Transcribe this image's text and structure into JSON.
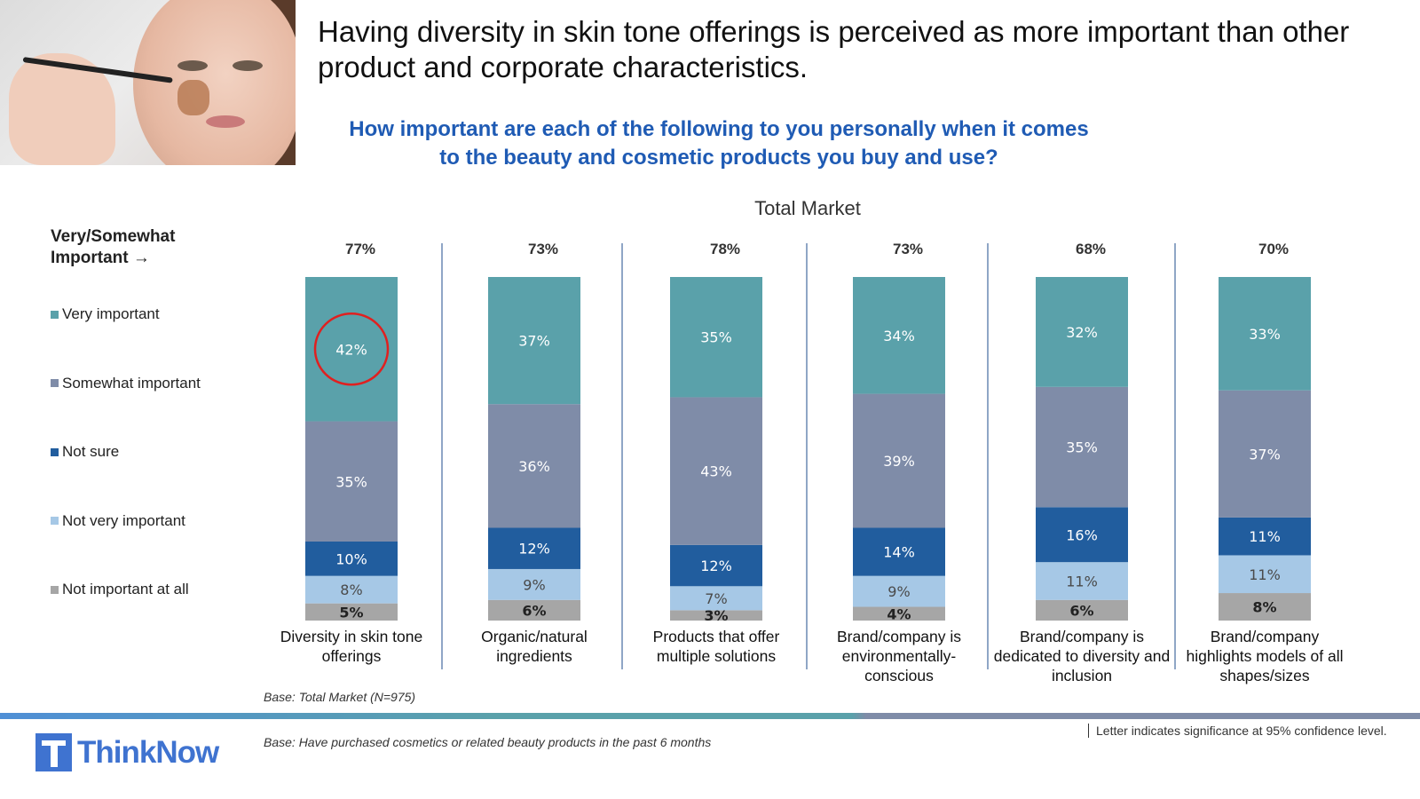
{
  "headline": "Having diversity in skin tone offerings is perceived as more important than other product and corporate characteristics.",
  "question": "How important are each of the following to you personally when it comes to the beauty and cosmetic products you buy and use?",
  "legend_title": "Very/Somewhat Important →",
  "chart_data": {
    "type": "bar",
    "stacked": true,
    "title": "Total Market",
    "unit": "%",
    "categories": [
      "Diversity in skin tone offerings",
      "Organic/natural ingredients",
      "Products that offer multiple solutions",
      "Brand/company is environmentally-conscious",
      "Brand/company is dedicated to diversity and inclusion",
      "Brand/company highlights models of all shapes/sizes"
    ],
    "totals_very_somewhat": [
      "77%",
      "73%",
      "78%",
      "73%",
      "68%",
      "70%"
    ],
    "series": [
      {
        "name": "Not important at all",
        "color": "#a6a6a6",
        "values": [
          5,
          6,
          3,
          4,
          6,
          8
        ]
      },
      {
        "name": "Not very important",
        "color": "#a6c8e6",
        "values": [
          8,
          9,
          7,
          9,
          11,
          11
        ]
      },
      {
        "name": "Not sure",
        "color": "#215d9e",
        "values": [
          10,
          12,
          12,
          14,
          16,
          11
        ]
      },
      {
        "name": "Somewhat important",
        "color": "#7f8ca8",
        "values": [
          35,
          36,
          43,
          39,
          35,
          37
        ]
      },
      {
        "name": "Very important",
        "color": "#5aa1aa",
        "values": [
          42,
          37,
          35,
          34,
          32,
          33
        ]
      }
    ],
    "highlight": {
      "category_index": 0,
      "series": "Very important",
      "color": "#e02020"
    },
    "legend_position": "left"
  },
  "footer": {
    "base1": "Base: Total Market (N=975)",
    "base2": "Base: Have purchased cosmetics or related beauty products in the past 6 months",
    "sig_note": "Letter indicates significance at 95% confidence level.",
    "logo_text": "ThinkNow"
  },
  "colors": {
    "question": "#1f5bb4",
    "brand": "#3f73d0",
    "divider": "#1f4e8c"
  }
}
